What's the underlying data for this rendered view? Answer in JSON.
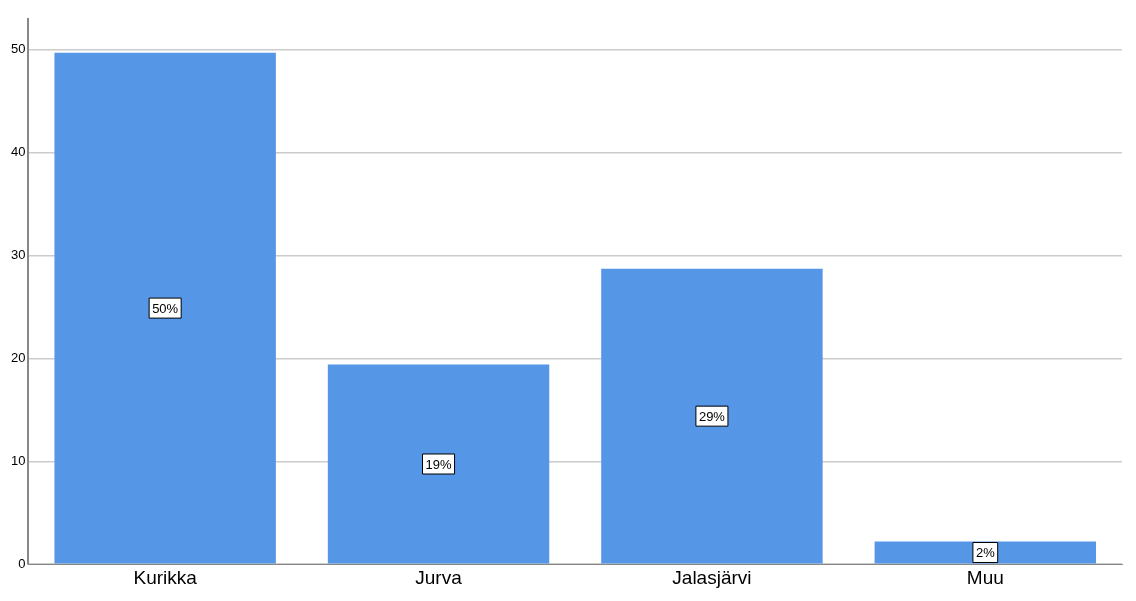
{
  "chart_data": {
    "type": "bar",
    "categories": [
      "Kurikka",
      "Jurva",
      "Jalasjärvi",
      "Muu"
    ],
    "values": [
      49.7,
      19.4,
      28.7,
      2.2
    ],
    "value_labels": [
      "50%",
      "19%",
      "29%",
      "2%"
    ],
    "color": "#5596e6",
    "ylim": [
      0,
      53
    ],
    "yticks": [
      0,
      10,
      20,
      30,
      40,
      50
    ],
    "grid": "y",
    "legend": false
  }
}
